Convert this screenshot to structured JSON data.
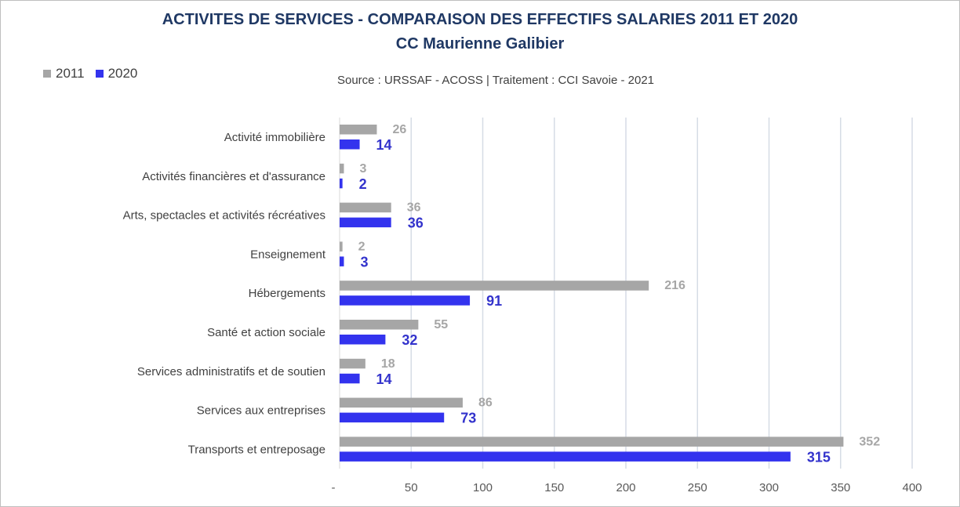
{
  "chart_data": {
    "type": "bar",
    "orientation": "horizontal",
    "title": "ACTIVITES DE SERVICES - COMPARAISON DES EFFECTIFS SALARIES 2011 ET 2020",
    "subtitle": "CC Maurienne Galibier",
    "source": "Source  : URSSAF - ACOSS  |  Traitement : CCI Savoie - 2021",
    "categories": [
      "Activité immobilière",
      "Activités financières et d'assurance",
      "Arts, spectacles et activités récréatives",
      "Enseignement",
      "Hébergements",
      "Santé et action sociale",
      "Services administratifs et de soutien",
      "Services aux entreprises",
      "Transports et entreposage"
    ],
    "series": [
      {
        "name": "2011",
        "color": "#a6a6a6",
        "values": [
          26,
          3,
          36,
          2,
          216,
          55,
          18,
          86,
          352
        ]
      },
      {
        "name": "2020",
        "color": "#3333ee",
        "values": [
          14,
          2,
          36,
          3,
          91,
          32,
          14,
          73,
          315
        ]
      }
    ],
    "xlim": [
      0,
      400
    ],
    "ticks": [
      0,
      50,
      100,
      150,
      200,
      250,
      300,
      350,
      400
    ],
    "tick_labels": [
      "-",
      "50",
      "100",
      "150",
      "200",
      "250",
      "300",
      "350",
      "400"
    ],
    "grid": true,
    "legend_position": "top-left"
  }
}
